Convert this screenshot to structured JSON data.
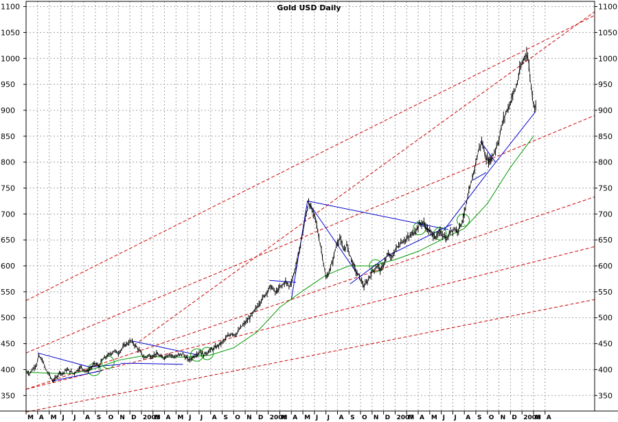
{
  "chart_data": {
    "type": "line",
    "title": "Gold USD Daily",
    "xlabel": "",
    "ylabel": "",
    "ylim": [
      320,
      1110
    ],
    "y_ticks": [
      350,
      400,
      450,
      500,
      550,
      600,
      650,
      700,
      750,
      800,
      850,
      900,
      950,
      1000,
      1050,
      1100
    ],
    "y_tick_labels": [
      "350",
      "400",
      "450",
      "500",
      "550",
      "600",
      "650",
      "700",
      "750",
      "800",
      "850",
      "900",
      "950",
      "1000",
      "1050",
      "1100"
    ],
    "x_domain_months": [
      0,
      49.3
    ],
    "month_labels": [
      "M",
      "A",
      "M",
      "J",
      "J",
      "A",
      "S",
      "O",
      "N",
      "D",
      "2005",
      "M",
      "A",
      "M",
      "J",
      "J",
      "A",
      "S",
      "O",
      "N",
      "D",
      "2006",
      "M",
      "A",
      "M",
      "J",
      "J",
      "A",
      "S",
      "O",
      "N",
      "D",
      "2007",
      "M",
      "A",
      "M",
      "J",
      "J",
      "A",
      "S",
      "O",
      "N",
      "D",
      "2008",
      "M",
      "A"
    ],
    "grid": true,
    "colors": {
      "price": "#000000",
      "trend": "#cc0000",
      "pattern": "#0000cc",
      "moving_average": "#009900",
      "grid": "#a0a0a0"
    },
    "price_anchors": [
      [
        0.0,
        398
      ],
      [
        0.3,
        392
      ],
      [
        0.6,
        402
      ],
      [
        0.9,
        410
      ],
      [
        1.1,
        425
      ],
      [
        1.4,
        418
      ],
      [
        1.7,
        400
      ],
      [
        2.0,
        390
      ],
      [
        2.3,
        378
      ],
      [
        2.6,
        384
      ],
      [
        2.9,
        395
      ],
      [
        3.2,
        392
      ],
      [
        3.5,
        400
      ],
      [
        3.8,
        397
      ],
      [
        4.1,
        392
      ],
      [
        4.4,
        398
      ],
      [
        4.7,
        405
      ],
      [
        5.0,
        400
      ],
      [
        5.3,
        396
      ],
      [
        5.7,
        405
      ],
      [
        6.0,
        412
      ],
      [
        6.3,
        406
      ],
      [
        6.6,
        418
      ],
      [
        7.0,
        425
      ],
      [
        7.3,
        430
      ],
      [
        7.6,
        436
      ],
      [
        8.0,
        432
      ],
      [
        8.3,
        440
      ],
      [
        8.6,
        448
      ],
      [
        8.9,
        452
      ],
      [
        9.1,
        455
      ],
      [
        9.4,
        448
      ],
      [
        9.7,
        440
      ],
      [
        10.0,
        430
      ],
      [
        10.3,
        422
      ],
      [
        10.6,
        428
      ],
      [
        10.9,
        425
      ],
      [
        11.2,
        430
      ],
      [
        11.5,
        428
      ],
      [
        11.8,
        422
      ],
      [
        12.1,
        425
      ],
      [
        12.4,
        430
      ],
      [
        12.7,
        426
      ],
      [
        13.0,
        425
      ],
      [
        13.3,
        428
      ],
      [
        13.6,
        430
      ],
      [
        13.9,
        422
      ],
      [
        14.2,
        418
      ],
      [
        14.5,
        425
      ],
      [
        14.8,
        430
      ],
      [
        15.1,
        435
      ],
      [
        15.4,
        428
      ],
      [
        15.8,
        435
      ],
      [
        16.2,
        440
      ],
      [
        16.6,
        445
      ],
      [
        17.0,
        452
      ],
      [
        17.4,
        462
      ],
      [
        17.8,
        470
      ],
      [
        18.2,
        468
      ],
      [
        18.6,
        480
      ],
      [
        19.0,
        490
      ],
      [
        19.4,
        500
      ],
      [
        19.8,
        512
      ],
      [
        20.2,
        528
      ],
      [
        20.6,
        540
      ],
      [
        21.0,
        555
      ],
      [
        21.3,
        560
      ],
      [
        21.6,
        548
      ],
      [
        21.9,
        555
      ],
      [
        22.2,
        562
      ],
      [
        22.5,
        570
      ],
      [
        22.8,
        560
      ],
      [
        23.1,
        575
      ],
      [
        23.4,
        600
      ],
      [
        23.7,
        630
      ],
      [
        24.0,
        665
      ],
      [
        24.3,
        700
      ],
      [
        24.5,
        725
      ],
      [
        24.8,
        705
      ],
      [
        25.1,
        690
      ],
      [
        25.4,
        655
      ],
      [
        25.7,
        620
      ],
      [
        26.0,
        575
      ],
      [
        26.3,
        590
      ],
      [
        26.6,
        610
      ],
      [
        26.9,
        640
      ],
      [
        27.2,
        655
      ],
      [
        27.5,
        630
      ],
      [
        27.8,
        640
      ],
      [
        28.1,
        620
      ],
      [
        28.4,
        600
      ],
      [
        28.7,
        585
      ],
      [
        29.0,
        575
      ],
      [
        29.3,
        560
      ],
      [
        29.6,
        570
      ],
      [
        29.9,
        585
      ],
      [
        30.2,
        595
      ],
      [
        30.5,
        600
      ],
      [
        30.8,
        590
      ],
      [
        31.1,
        610
      ],
      [
        31.4,
        622
      ],
      [
        31.7,
        615
      ],
      [
        32.0,
        630
      ],
      [
        32.3,
        640
      ],
      [
        32.6,
        648
      ],
      [
        32.9,
        650
      ],
      [
        33.2,
        655
      ],
      [
        33.5,
        662
      ],
      [
        33.8,
        670
      ],
      [
        34.1,
        678
      ],
      [
        34.4,
        685
      ],
      [
        34.7,
        675
      ],
      [
        35.0,
        665
      ],
      [
        35.3,
        660
      ],
      [
        35.6,
        655
      ],
      [
        35.9,
        665
      ],
      [
        36.2,
        660
      ],
      [
        36.5,
        650
      ],
      [
        36.8,
        668
      ],
      [
        37.1,
        672
      ],
      [
        37.4,
        668
      ],
      [
        37.7,
        680
      ],
      [
        38.0,
        700
      ],
      [
        38.3,
        730
      ],
      [
        38.6,
        760
      ],
      [
        38.9,
        790
      ],
      [
        39.2,
        820
      ],
      [
        39.5,
        840
      ],
      [
        39.8,
        815
      ],
      [
        40.1,
        800
      ],
      [
        40.4,
        810
      ],
      [
        40.7,
        825
      ],
      [
        41.0,
        845
      ],
      [
        41.3,
        875
      ],
      [
        41.6,
        895
      ],
      [
        41.9,
        910
      ],
      [
        42.2,
        930
      ],
      [
        42.5,
        945
      ],
      [
        42.8,
        975
      ],
      [
        43.1,
        995
      ],
      [
        43.4,
        1015
      ],
      [
        43.6,
        985
      ],
      [
        43.8,
        945
      ],
      [
        44.0,
        915
      ],
      [
        44.2,
        905
      ]
    ],
    "moving_average_anchors": [
      [
        0.0,
        395
      ],
      [
        2.0,
        393
      ],
      [
        4.0,
        392
      ],
      [
        6.0,
        402
      ],
      [
        8.0,
        418
      ],
      [
        10.0,
        426
      ],
      [
        12.0,
        424
      ],
      [
        14.0,
        424
      ],
      [
        16.0,
        428
      ],
      [
        18.0,
        442
      ],
      [
        20.0,
        472
      ],
      [
        22.0,
        520
      ],
      [
        24.0,
        552
      ],
      [
        26.0,
        582
      ],
      [
        28.0,
        600
      ],
      [
        30.0,
        600
      ],
      [
        32.0,
        612
      ],
      [
        34.0,
        628
      ],
      [
        36.0,
        650
      ],
      [
        38.0,
        672
      ],
      [
        40.0,
        720
      ],
      [
        42.0,
        790
      ],
      [
        44.0,
        850
      ]
    ],
    "trend_lines": [
      {
        "name": "",
        "x": [
          0.0,
          49.3
        ],
        "y": [
          362,
          733
        ]
      },
      {
        "name": "",
        "x": [
          0.0,
          49.3
        ],
        "y": [
          432,
          890
        ]
      },
      {
        "name": "",
        "x": [
          0.0,
          49.3
        ],
        "y": [
          362,
          637
        ]
      },
      {
        "name": "",
        "x": [
          0.0,
          49.3
        ],
        "y": [
          318,
          535
        ]
      },
      {
        "name": "",
        "x": [
          0.0,
          49.3
        ],
        "y": [
          533,
          1083
        ]
      },
      {
        "name": "",
        "x": [
          9.8,
          49.3
        ],
        "y": [
          454,
          1090
        ]
      }
    ],
    "pattern_lines": [
      {
        "x": [
          1.0,
          5.5,
          8.2
        ],
        "y": [
          432,
          405,
          410
        ]
      },
      {
        "x": [
          2.3,
          6.6
        ],
        "y": [
          378,
          398
        ]
      },
      {
        "x": [
          9.2,
          14.9
        ],
        "y": [
          455,
          428
        ]
      },
      {
        "x": [
          8.2,
          9.6,
          13.6
        ],
        "y": [
          412,
          412,
          410
        ]
      },
      {
        "x": [
          23.0,
          24.4,
          28.8
        ],
        "y": [
          535,
          725,
          582
        ]
      },
      {
        "x": [
          24.4,
          36.6
        ],
        "y": [
          725,
          670
        ]
      },
      {
        "x": [
          21.1,
          23.4
        ],
        "y": [
          572,
          568
        ]
      },
      {
        "x": [
          28.1,
          31.4,
          36.9
        ],
        "y": [
          565,
          620,
          680
        ]
      },
      {
        "x": [
          33.9,
          35.2
        ],
        "y": [
          685,
          665
        ]
      },
      {
        "x": [
          36.2,
          40.2,
          44.2
        ],
        "y": [
          668,
          785,
          898
        ]
      },
      {
        "x": [
          38.7,
          39.9
        ],
        "y": [
          765,
          780
        ]
      },
      {
        "x": [
          39.4,
          40.7
        ],
        "y": [
          840,
          800
        ]
      }
    ],
    "pattern_circles": [
      {
        "x": 5.9,
        "y": 400
      },
      {
        "x": 7.1,
        "y": 414
      },
      {
        "x": 14.8,
        "y": 428
      },
      {
        "x": 15.7,
        "y": 431
      },
      {
        "x": 30.3,
        "y": 600
      },
      {
        "x": 34.1,
        "y": 672
      },
      {
        "x": 35.9,
        "y": 662
      },
      {
        "x": 37.9,
        "y": 688
      }
    ]
  }
}
